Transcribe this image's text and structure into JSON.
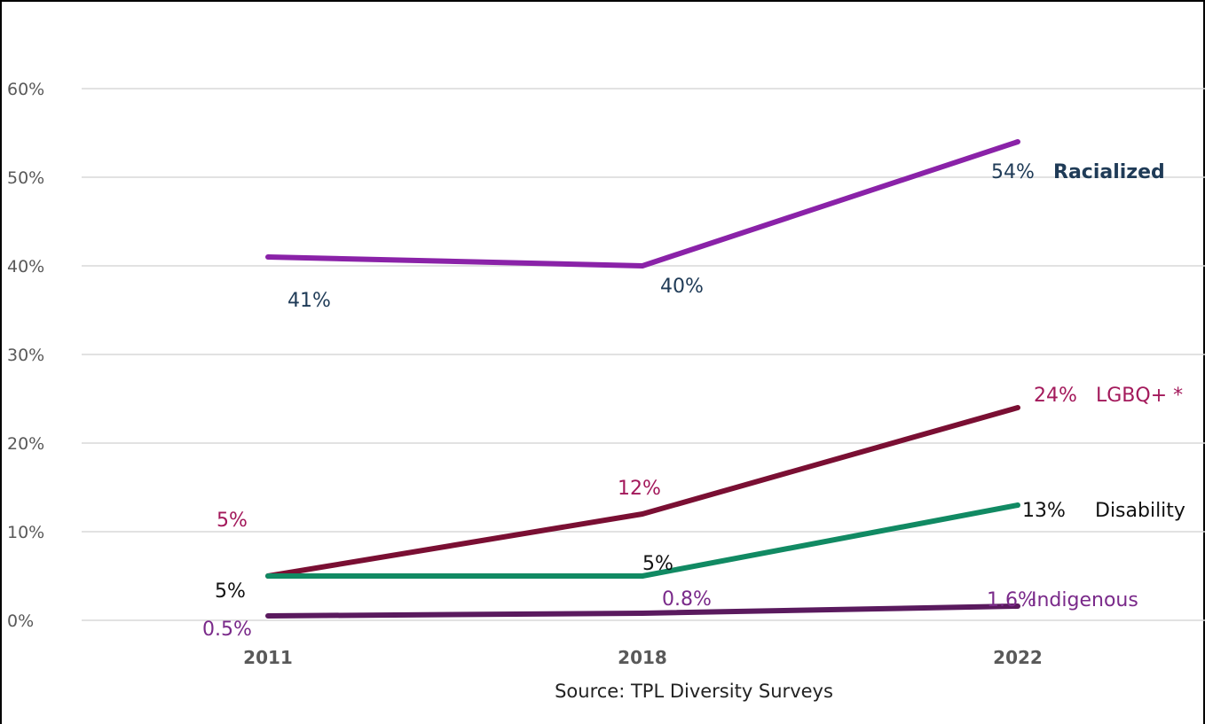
{
  "chart_data": {
    "type": "line",
    "x": [
      "2011",
      "2018",
      "2022"
    ],
    "ylim": [
      0,
      60
    ],
    "yticks": [
      "0%",
      "10%",
      "20%",
      "30%",
      "40%",
      "50%",
      "60%"
    ],
    "grid": true,
    "source": "Source: TPL Diversity Surveys",
    "series": [
      {
        "name": "Racialized",
        "values": [
          41,
          40,
          54
        ],
        "labels": [
          "41%",
          "40%",
          "54%"
        ],
        "color": "#8a22a8",
        "label_color": "#1f3b57",
        "name_color": "#1f3b57"
      },
      {
        "name": "LGBQ+ *",
        "values": [
          5,
          12,
          24
        ],
        "labels": [
          "5%",
          "12%",
          "24%"
        ],
        "color": "#7a0f33",
        "label_color": "#a3195b",
        "name_color": "#a3195b"
      },
      {
        "name": "Disability",
        "values": [
          5,
          5,
          13
        ],
        "labels": [
          "5%",
          "5%",
          "13%"
        ],
        "color": "#118a63",
        "label_color": "#111111",
        "name_color": "#111111"
      },
      {
        "name": "Indigenous",
        "values": [
          0.5,
          0.8,
          1.6
        ],
        "labels": [
          "0.5%",
          "0.8%",
          "1.6%"
        ],
        "color": "#5a1a5e",
        "label_color": "#7a2a8a",
        "name_color": "#7a2a8a"
      }
    ]
  }
}
